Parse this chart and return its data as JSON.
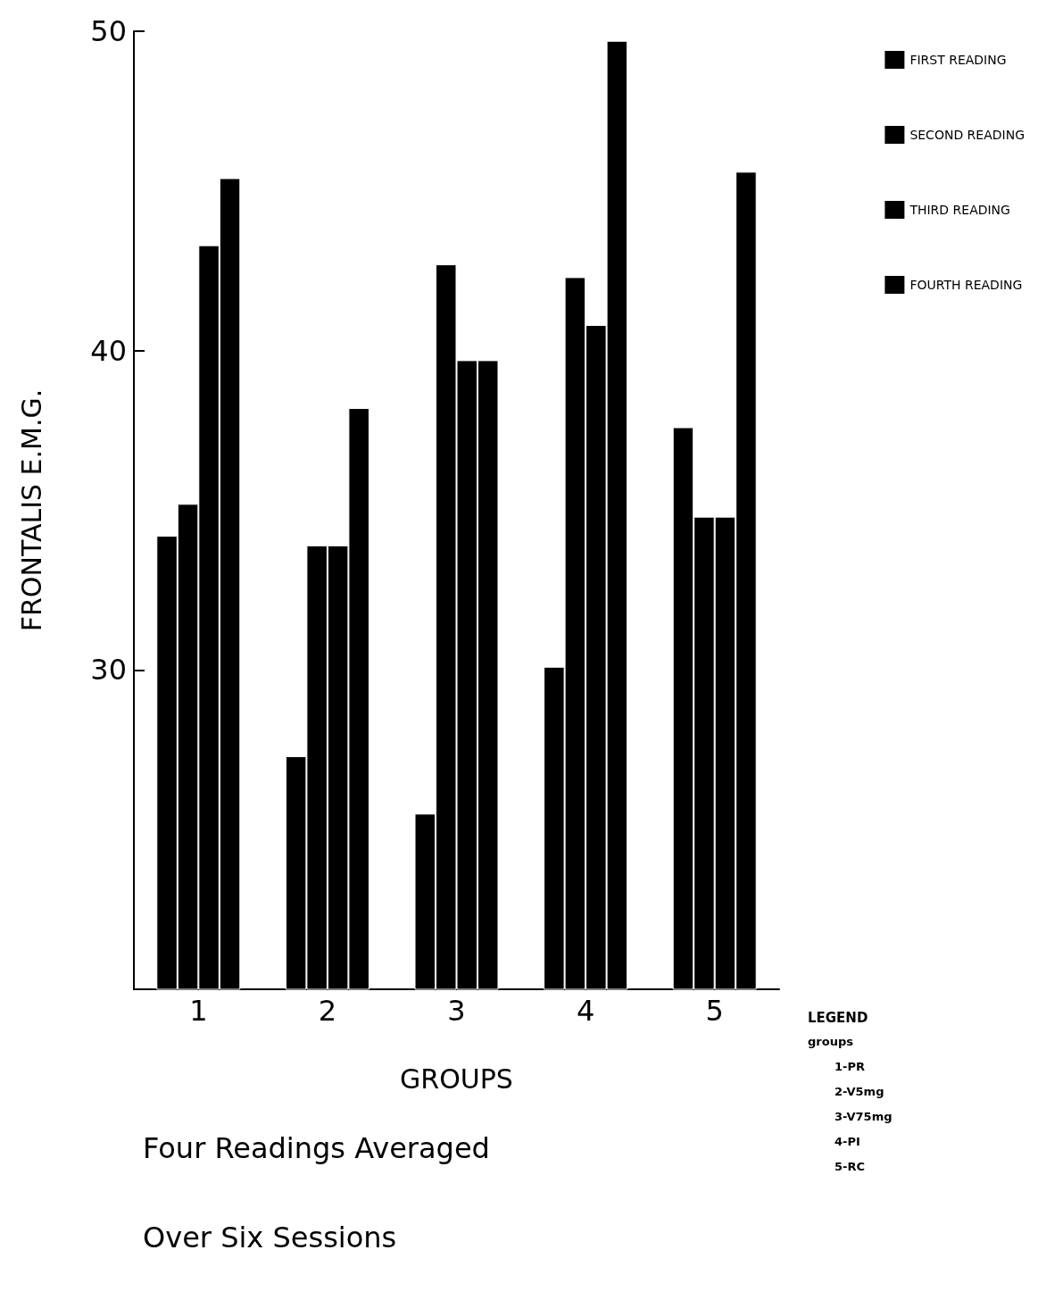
{
  "chart_data": {
    "type": "bar",
    "title": "Four Readings Averaged\nOver Six Sessions",
    "xlabel": "GROUPS",
    "ylabel": "FRONTALIS E.M.G.",
    "categories": [
      "1",
      "2",
      "3",
      "4",
      "5"
    ],
    "series": [
      {
        "name": "FIRST READING",
        "color": "#000000",
        "values": [
          34.2,
          27.3,
          25.5,
          30.1,
          37.6
        ]
      },
      {
        "name": "SECOND READING",
        "color": "#000000",
        "values": [
          35.2,
          33.9,
          42.7,
          42.3,
          34.8
        ]
      },
      {
        "name": "THIRD READING",
        "color": "#000000",
        "values": [
          43.3,
          33.9,
          39.7,
          40.8,
          34.8
        ]
      },
      {
        "name": "FOURTH READING",
        "color": "#000000",
        "values": [
          45.4,
          38.2,
          39.7,
          49.7,
          45.6
        ]
      }
    ],
    "ylim": [
      20,
      50
    ],
    "yticks": [
      30,
      40,
      50
    ],
    "grid": false,
    "legend": "top right",
    "annotations": [
      "LEGEND",
      "groups",
      "1-PR",
      "2-V5mg",
      "3-V75mg",
      "4-PI",
      "5-RC"
    ]
  }
}
